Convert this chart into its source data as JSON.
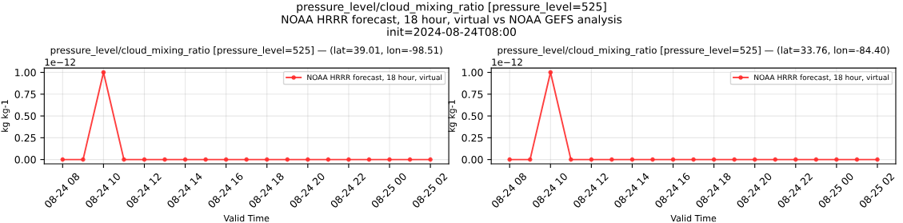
{
  "chart_data": [
    {
      "type": "line",
      "title": "pressure_level/cloud_mixing_ratio [pressure_level=525] — (lat=39.01, lon=-98.51)",
      "xlabel": "Valid Time",
      "ylabel": "kg kg-1",
      "annotations": [
        "pressure_level/cloud_mixing_ratio [pressure_level=525]\nNOAA HRRR forecast, 18 hour, virtual vs NOAA GEFS analysis\ninit=2024-08-24T08:00",
        "1e−12"
      ],
      "x": [
        "2024-08-24T08:00",
        "2024-08-24T09:00",
        "2024-08-24T10:00",
        "2024-08-24T11:00",
        "2024-08-24T12:00",
        "2024-08-24T13:00",
        "2024-08-24T14:00",
        "2024-08-24T15:00",
        "2024-08-24T16:00",
        "2024-08-24T17:00",
        "2024-08-24T18:00",
        "2024-08-24T19:00",
        "2024-08-24T20:00",
        "2024-08-24T21:00",
        "2024-08-24T22:00",
        "2024-08-24T23:00",
        "2024-08-25T00:00",
        "2024-08-25T01:00",
        "2024-08-25T02:00"
      ],
      "series": [
        {
          "name": "NOAA HRRR forecast, 18 hour, virtual",
          "color": "#ff2a2a",
          "values": [
            0,
            0,
            1,
            0,
            0,
            0,
            0,
            0,
            0,
            0,
            0,
            0,
            0,
            0,
            0,
            0,
            0,
            0,
            0
          ]
        }
      ],
      "xlim": [
        "2024-08-24T07:06",
        "2024-08-25T02:54"
      ],
      "xticks": [
        {
          "value": "2024-08-24T08:00",
          "label": "08-24 08"
        },
        {
          "value": "2024-08-24T10:00",
          "label": "08-24 10"
        },
        {
          "value": "2024-08-24T12:00",
          "label": "08-24 12"
        },
        {
          "value": "2024-08-24T14:00",
          "label": "08-24 14"
        },
        {
          "value": "2024-08-24T16:00",
          "label": "08-24 16"
        },
        {
          "value": "2024-08-24T18:00",
          "label": "08-24 18"
        },
        {
          "value": "2024-08-24T20:00",
          "label": "08-24 20"
        },
        {
          "value": "2024-08-24T22:00",
          "label": "08-24 22"
        },
        {
          "value": "2024-08-25T00:00",
          "label": "08-25 00"
        },
        {
          "value": "2024-08-25T02:00",
          "label": "08-25 02"
        }
      ],
      "ylim": [
        -0.05,
        1.05
      ],
      "yticks": [
        {
          "value": 0,
          "label": "0.00"
        },
        {
          "value": 0.25,
          "label": "0.25"
        },
        {
          "value": 0.5,
          "label": "0.50"
        },
        {
          "value": 0.75,
          "label": "0.75"
        },
        {
          "value": 1,
          "label": "1.00"
        }
      ],
      "grid": true,
      "legend": "top right",
      "marker": "circle",
      "line_style": "solid"
    },
    {
      "type": "line",
      "title": "pressure_level/cloud_mixing_ratio [pressure_level=525] — (lat=33.76, lon=-84.40)",
      "xlabel": "Valid Time",
      "ylabel": "kg kg-1",
      "annotations": [
        "1e−12"
      ],
      "x": [
        "2024-08-24T08:00",
        "2024-08-24T09:00",
        "2024-08-24T10:00",
        "2024-08-24T11:00",
        "2024-08-24T12:00",
        "2024-08-24T13:00",
        "2024-08-24T14:00",
        "2024-08-24T15:00",
        "2024-08-24T16:00",
        "2024-08-24T17:00",
        "2024-08-24T18:00",
        "2024-08-24T19:00",
        "2024-08-24T20:00",
        "2024-08-24T21:00",
        "2024-08-24T22:00",
        "2024-08-24T23:00",
        "2024-08-25T00:00",
        "2024-08-25T01:00",
        "2024-08-25T02:00"
      ],
      "series": [
        {
          "name": "NOAA HRRR forecast, 18 hour, virtual",
          "color": "#ff2a2a",
          "values": [
            0,
            0,
            1,
            0,
            0,
            0,
            0,
            0,
            0,
            0,
            0,
            0,
            0,
            0,
            0,
            0,
            0,
            0,
            0
          ]
        }
      ],
      "xlim": [
        "2024-08-24T07:06",
        "2024-08-25T02:54"
      ],
      "xticks": [
        {
          "value": "2024-08-24T08:00",
          "label": "08-24 08"
        },
        {
          "value": "2024-08-24T10:00",
          "label": "08-24 10"
        },
        {
          "value": "2024-08-24T12:00",
          "label": "08-24 12"
        },
        {
          "value": "2024-08-24T14:00",
          "label": "08-24 14"
        },
        {
          "value": "2024-08-24T16:00",
          "label": "08-24 16"
        },
        {
          "value": "2024-08-24T18:00",
          "label": "08-24 18"
        },
        {
          "value": "2024-08-24T20:00",
          "label": "08-24 20"
        },
        {
          "value": "2024-08-24T22:00",
          "label": "08-24 22"
        },
        {
          "value": "2024-08-25T00:00",
          "label": "08-25 00"
        },
        {
          "value": "2024-08-25T02:00",
          "label": "08-25 02"
        }
      ],
      "ylim": [
        -0.05,
        1.05
      ],
      "yticks": [
        {
          "value": 0,
          "label": "0.00"
        },
        {
          "value": 0.25,
          "label": "0.25"
        },
        {
          "value": 0.5,
          "label": "0.50"
        },
        {
          "value": 0.75,
          "label": "0.75"
        },
        {
          "value": 1,
          "label": "1.00"
        }
      ],
      "grid": true,
      "legend": "top right",
      "marker": "circle",
      "line_style": "solid"
    }
  ]
}
